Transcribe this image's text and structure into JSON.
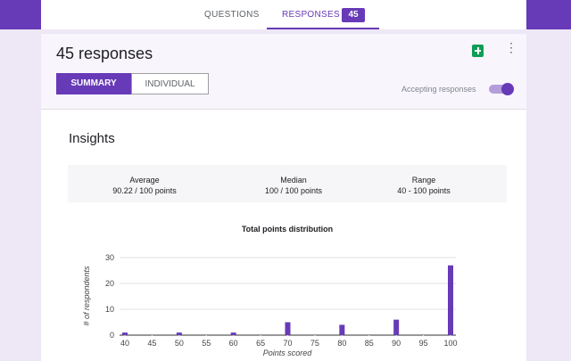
{
  "tabs": {
    "questions": "QUESTIONS",
    "responses": "RESPONSES",
    "badge": "45"
  },
  "header": {
    "title": "45 responses",
    "summary": "SUMMARY",
    "individual": "INDIVIDUAL",
    "accepting": "Accepting responses"
  },
  "insights": {
    "title": "Insights",
    "stats": [
      {
        "label": "Average",
        "value": "90.22 / 100 points"
      },
      {
        "label": "Median",
        "value": "100 / 100 points"
      },
      {
        "label": "Range",
        "value": "40 - 100 points"
      }
    ]
  },
  "chart_data": {
    "type": "bar",
    "title": "Total points distribution",
    "x_label": "Points scored",
    "y_label": "# of respondents",
    "x": [
      40,
      50,
      60,
      70,
      80,
      90,
      100
    ],
    "values": [
      1,
      1,
      1,
      5,
      4,
      6,
      27
    ],
    "color": "#673ab7",
    "xlim": [
      40,
      100
    ],
    "xticks": [
      40,
      45,
      50,
      55,
      60,
      65,
      70,
      75,
      80,
      85,
      90,
      95,
      100
    ],
    "ylim": [
      0,
      30
    ],
    "yticks": [
      0,
      10,
      20,
      30
    ],
    "grid": true
  }
}
